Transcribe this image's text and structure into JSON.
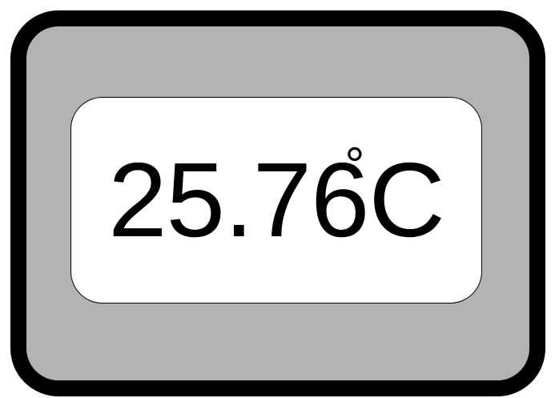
{
  "display": {
    "value": "25.76",
    "degree": "°",
    "unit": "C"
  },
  "colors": {
    "frame": "#000000",
    "bezel": "#b3b3b3",
    "screen": "#ffffff",
    "text": "#000000"
  }
}
